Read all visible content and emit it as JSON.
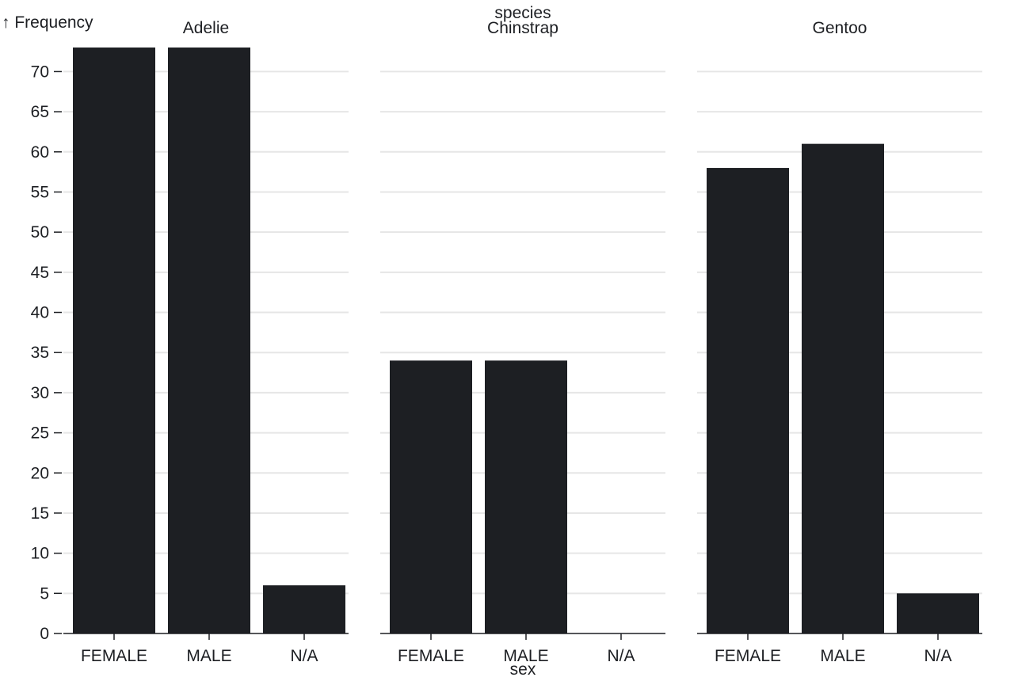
{
  "chart_data": {
    "type": "bar",
    "y_axis_label": "↑ Frequency",
    "facet_label": "species",
    "x_axis_label": "sex",
    "categories": [
      "FEMALE",
      "MALE",
      "N/A"
    ],
    "y_ticks": [
      0,
      5,
      10,
      15,
      20,
      25,
      30,
      35,
      40,
      45,
      50,
      55,
      60,
      65,
      70
    ],
    "ylim": [
      0,
      73
    ],
    "grid": true,
    "bar_color": "#1d1f23",
    "facets": [
      {
        "name": "Adelie",
        "values": [
          73,
          73,
          6
        ]
      },
      {
        "name": "Chinstrap",
        "values": [
          34,
          34,
          0
        ]
      },
      {
        "name": "Gentoo",
        "values": [
          58,
          61,
          5
        ]
      }
    ]
  }
}
